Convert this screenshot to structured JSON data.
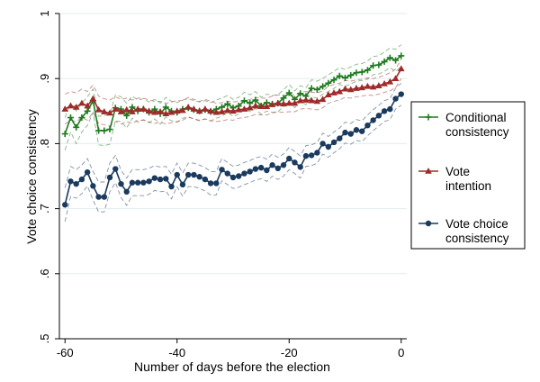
{
  "chart_data": {
    "type": "line",
    "title": "",
    "xlabel": "Number of days before the election",
    "ylabel": "Vote choice consistency",
    "xlim": [
      -61,
      1
    ],
    "ylim": [
      0.5,
      1.0
    ],
    "xticks": [
      -60,
      -40,
      -20,
      0
    ],
    "xtick_labels": [
      "-60",
      "-40",
      "-20",
      "0"
    ],
    "yticks": [
      0.5,
      0.6,
      0.7,
      0.8,
      0.9,
      1.0
    ],
    "ytick_labels": [
      ".5",
      ".6",
      ".7",
      ".8",
      ".9",
      "1"
    ],
    "grid": "horizontal",
    "legend_position": "right",
    "x": [
      -60,
      -59,
      -58,
      -57,
      -56,
      -55,
      -54,
      -53,
      -52,
      -51,
      -50,
      -49,
      -48,
      -47,
      -46,
      -45,
      -44,
      -43,
      -42,
      -41,
      -40,
      -39,
      -38,
      -37,
      -36,
      -35,
      -34,
      -33,
      -32,
      -31,
      -30,
      -29,
      -28,
      -27,
      -26,
      -25,
      -24,
      -23,
      -22,
      -21,
      -20,
      -19,
      -18,
      -17,
      -16,
      -15,
      -14,
      -13,
      -12,
      -11,
      -10,
      -9,
      -8,
      -7,
      -6,
      -5,
      -4,
      -3,
      -2,
      -1,
      0
    ],
    "series": [
      {
        "name": "Conditional consistency",
        "color": "#1e7b1e",
        "marker": "plus",
        "values": [
          0.815,
          0.84,
          0.825,
          0.84,
          0.85,
          0.866,
          0.82,
          0.82,
          0.822,
          0.855,
          0.853,
          0.843,
          0.856,
          0.85,
          0.853,
          0.848,
          0.853,
          0.846,
          0.856,
          0.85,
          0.848,
          0.853,
          0.855,
          0.852,
          0.85,
          0.852,
          0.849,
          0.853,
          0.856,
          0.861,
          0.855,
          0.858,
          0.866,
          0.862,
          0.867,
          0.858,
          0.863,
          0.861,
          0.862,
          0.87,
          0.878,
          0.868,
          0.877,
          0.873,
          0.885,
          0.883,
          0.888,
          0.893,
          0.898,
          0.904,
          0.901,
          0.905,
          0.909,
          0.91,
          0.913,
          0.92,
          0.921,
          0.926,
          0.932,
          0.928,
          0.935
        ],
        "ci_upper": [
          0.84,
          0.862,
          0.85,
          0.862,
          0.872,
          0.884,
          0.842,
          0.843,
          0.845,
          0.875,
          0.872,
          0.862,
          0.873,
          0.867,
          0.869,
          0.864,
          0.868,
          0.862,
          0.871,
          0.865,
          0.863,
          0.867,
          0.869,
          0.866,
          0.864,
          0.866,
          0.863,
          0.867,
          0.87,
          0.874,
          0.868,
          0.871,
          0.879,
          0.875,
          0.88,
          0.871,
          0.876,
          0.874,
          0.875,
          0.883,
          0.891,
          0.881,
          0.889,
          0.886,
          0.898,
          0.896,
          0.9,
          0.906,
          0.911,
          0.917,
          0.914,
          0.918,
          0.922,
          0.923,
          0.927,
          0.934,
          0.935,
          0.941,
          0.947,
          0.945,
          0.952
        ],
        "ci_lower": [
          0.79,
          0.818,
          0.8,
          0.818,
          0.828,
          0.848,
          0.798,
          0.797,
          0.799,
          0.835,
          0.834,
          0.824,
          0.839,
          0.833,
          0.837,
          0.832,
          0.838,
          0.83,
          0.841,
          0.835,
          0.833,
          0.839,
          0.841,
          0.838,
          0.836,
          0.838,
          0.835,
          0.839,
          0.842,
          0.848,
          0.842,
          0.845,
          0.853,
          0.849,
          0.854,
          0.845,
          0.85,
          0.848,
          0.849,
          0.857,
          0.865,
          0.855,
          0.865,
          0.86,
          0.872,
          0.87,
          0.876,
          0.88,
          0.885,
          0.891,
          0.888,
          0.892,
          0.896,
          0.897,
          0.899,
          0.906,
          0.907,
          0.911,
          0.917,
          0.911,
          0.918
        ]
      },
      {
        "name": "Vote intention",
        "color": "#9e2a2a",
        "marker": "triangle",
        "values": [
          0.853,
          0.858,
          0.856,
          0.862,
          0.858,
          0.869,
          0.852,
          0.849,
          0.847,
          0.853,
          0.849,
          0.852,
          0.849,
          0.853,
          0.853,
          0.85,
          0.848,
          0.849,
          0.846,
          0.848,
          0.85,
          0.851,
          0.856,
          0.853,
          0.85,
          0.853,
          0.85,
          0.848,
          0.849,
          0.851,
          0.85,
          0.852,
          0.853,
          0.855,
          0.858,
          0.857,
          0.857,
          0.86,
          0.862,
          0.861,
          0.862,
          0.862,
          0.866,
          0.867,
          0.866,
          0.865,
          0.868,
          0.875,
          0.878,
          0.88,
          0.884,
          0.883,
          0.885,
          0.886,
          0.888,
          0.887,
          0.889,
          0.892,
          0.895,
          0.9,
          0.915
        ],
        "ci_upper": [
          0.876,
          0.88,
          0.878,
          0.884,
          0.88,
          0.89,
          0.873,
          0.869,
          0.867,
          0.872,
          0.868,
          0.87,
          0.867,
          0.87,
          0.87,
          0.867,
          0.865,
          0.865,
          0.862,
          0.864,
          0.866,
          0.866,
          0.871,
          0.868,
          0.865,
          0.868,
          0.865,
          0.862,
          0.863,
          0.865,
          0.864,
          0.865,
          0.866,
          0.868,
          0.871,
          0.87,
          0.87,
          0.873,
          0.875,
          0.874,
          0.875,
          0.875,
          0.879,
          0.88,
          0.879,
          0.878,
          0.881,
          0.888,
          0.891,
          0.893,
          0.897,
          0.896,
          0.898,
          0.899,
          0.901,
          0.9,
          0.902,
          0.905,
          0.909,
          0.914,
          0.93
        ],
        "ci_lower": [
          0.83,
          0.836,
          0.834,
          0.84,
          0.836,
          0.848,
          0.831,
          0.829,
          0.827,
          0.834,
          0.83,
          0.834,
          0.831,
          0.836,
          0.836,
          0.833,
          0.831,
          0.833,
          0.83,
          0.832,
          0.834,
          0.836,
          0.841,
          0.838,
          0.835,
          0.838,
          0.835,
          0.834,
          0.835,
          0.837,
          0.836,
          0.839,
          0.84,
          0.842,
          0.845,
          0.844,
          0.844,
          0.847,
          0.849,
          0.848,
          0.849,
          0.849,
          0.853,
          0.854,
          0.853,
          0.852,
          0.855,
          0.862,
          0.865,
          0.867,
          0.871,
          0.87,
          0.872,
          0.873,
          0.875,
          0.874,
          0.876,
          0.879,
          0.881,
          0.886,
          0.9
        ]
      },
      {
        "name": "Vote choice consistency",
        "color": "#1a3a5e",
        "marker": "circle",
        "values": [
          0.706,
          0.742,
          0.738,
          0.745,
          0.756,
          0.735,
          0.718,
          0.718,
          0.748,
          0.761,
          0.738,
          0.726,
          0.74,
          0.74,
          0.74,
          0.742,
          0.747,
          0.745,
          0.746,
          0.734,
          0.752,
          0.737,
          0.752,
          0.752,
          0.749,
          0.745,
          0.739,
          0.739,
          0.76,
          0.754,
          0.748,
          0.75,
          0.754,
          0.757,
          0.761,
          0.763,
          0.759,
          0.767,
          0.762,
          0.767,
          0.777,
          0.771,
          0.764,
          0.781,
          0.782,
          0.786,
          0.8,
          0.795,
          0.802,
          0.808,
          0.817,
          0.815,
          0.821,
          0.819,
          0.828,
          0.836,
          0.843,
          0.85,
          0.853,
          0.869,
          0.876
        ],
        "ci_upper": [
          0.732,
          0.765,
          0.76,
          0.767,
          0.777,
          0.757,
          0.741,
          0.741,
          0.77,
          0.782,
          0.759,
          0.747,
          0.76,
          0.76,
          0.76,
          0.762,
          0.766,
          0.764,
          0.765,
          0.753,
          0.77,
          0.755,
          0.77,
          0.77,
          0.767,
          0.763,
          0.757,
          0.757,
          0.777,
          0.771,
          0.765,
          0.767,
          0.771,
          0.774,
          0.778,
          0.78,
          0.776,
          0.784,
          0.779,
          0.784,
          0.794,
          0.788,
          0.781,
          0.797,
          0.798,
          0.802,
          0.816,
          0.811,
          0.818,
          0.824,
          0.833,
          0.831,
          0.837,
          0.835,
          0.844,
          0.852,
          0.859,
          0.866,
          0.869,
          0.885,
          0.893
        ],
        "ci_lower": [
          0.68,
          0.719,
          0.716,
          0.723,
          0.735,
          0.713,
          0.695,
          0.695,
          0.726,
          0.74,
          0.717,
          0.705,
          0.72,
          0.72,
          0.72,
          0.722,
          0.728,
          0.726,
          0.727,
          0.715,
          0.734,
          0.719,
          0.734,
          0.734,
          0.731,
          0.727,
          0.721,
          0.721,
          0.743,
          0.737,
          0.731,
          0.733,
          0.737,
          0.74,
          0.744,
          0.746,
          0.742,
          0.75,
          0.745,
          0.75,
          0.76,
          0.754,
          0.747,
          0.765,
          0.766,
          0.77,
          0.784,
          0.779,
          0.786,
          0.792,
          0.801,
          0.799,
          0.805,
          0.803,
          0.812,
          0.82,
          0.827,
          0.834,
          0.837,
          0.853,
          0.859
        ]
      }
    ],
    "legend": [
      {
        "label_lines": [
          "Conditional",
          "consistency"
        ],
        "color": "#1e7b1e",
        "marker": "plus"
      },
      {
        "label_lines": [
          "Vote",
          "intention"
        ],
        "color": "#9e2a2a",
        "marker": "triangle"
      },
      {
        "label_lines": [
          "Vote choice",
          "consistency"
        ],
        "color": "#1a3a5e",
        "marker": "circle"
      }
    ]
  }
}
